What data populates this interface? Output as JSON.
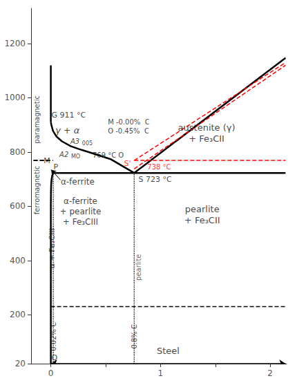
{
  "chart_data": {
    "type": "line",
    "xlim": [
      -0.18,
      2.15
    ],
    "xticks": [
      0,
      {
        "value": 0.5,
        "label": null
      },
      1,
      {
        "value": 1.5,
        "label": null
      },
      2
    ],
    "ylim": [
      20,
      1330
    ],
    "yticks": [
      20,
      200,
      400,
      600,
      800,
      1000,
      1200
    ],
    "grid": false,
    "series": [
      {
        "type": "line",
        "line_style": "solid",
        "color": "#000000",
        "x": [
          0.0,
          0.0,
          0.001,
          0.003,
          0.007,
          0.013,
          0.018,
          0.022
        ],
        "y": [
          20,
          600,
          650,
          680,
          700,
          714,
          720,
          723
        ]
      },
      {
        "type": "line",
        "line_style": "solid",
        "color": "#000000",
        "x": [
          0.0,
          0.005,
          0.02,
          0.05,
          0.1,
          0.18,
          0.28,
          0.4,
          0.55,
          0.76
        ],
        "y": [
          911,
          900,
          878,
          858,
          840,
          822,
          808,
          793,
          773,
          723
        ]
      },
      {
        "type": "line",
        "line_style": "solid",
        "color": "#000000",
        "x": [
          0.0,
          0.0
        ],
        "y": [
          911,
          1120
        ]
      },
      {
        "type": "line",
        "line_style": "solid",
        "color": "#000000",
        "x": [
          0.76,
          2.14
        ],
        "y": [
          723,
          1147
        ]
      },
      {
        "type": "line",
        "line_style": "solid",
        "color": "#000000",
        "x": [
          0.022,
          0.76
        ],
        "y": [
          723,
          723
        ]
      },
      {
        "type": "line",
        "line_style": "solid",
        "color": "#000000",
        "x": [
          0.76,
          2.14
        ],
        "y": [
          723,
          723
        ]
      },
      {
        "type": "line",
        "line_style": "dashed",
        "color": "#000000",
        "x": [
          -0.155,
          0.022
        ],
        "y": [
          769,
          769
        ]
      },
      {
        "type": "line",
        "line_style": "dashed",
        "color": "#ff0000",
        "x": [
          0.76,
          2.14
        ],
        "y": [
          769,
          769
        ]
      },
      {
        "type": "line",
        "line_style": "dashed",
        "color": "#ff0000",
        "x": [
          0.76,
          2.14
        ],
        "y": [
          738,
          1120
        ]
      },
      {
        "type": "line",
        "line_style": "dashed",
        "color": "#ff0000",
        "x": [
          0.76,
          2.14
        ],
        "y": [
          769,
          1130
        ]
      },
      {
        "type": "line",
        "line_style": "dotted",
        "color": "#000000",
        "x": [
          0.022,
          0.022
        ],
        "y": [
          20,
          723
        ]
      },
      {
        "type": "line",
        "line_style": "dotted",
        "color": "#000000",
        "x": [
          0.76,
          0.76
        ],
        "y": [
          20,
          723
        ]
      },
      {
        "type": "line",
        "line_style": "dashed",
        "color": "#000000",
        "x": [
          0.0,
          2.14
        ],
        "y": [
          230,
          230
        ]
      },
      {
        "type": "line",
        "line_style": "dashed",
        "color": "#000000",
        "x": [
          -0.16,
          -0.02
        ],
        "y": [
          769,
          769
        ]
      },
      {
        "type": "arrow",
        "color": "#000000",
        "x": [
          0.0,
          2.14
        ],
        "y": [
          20,
          20
        ]
      }
    ],
    "annotations": [
      {
        "text": "G 911 °C"
      },
      {
        "text": "P"
      },
      {
        "text": "S 723 °C"
      },
      {
        "text": "Q"
      },
      {
        "text": "M"
      },
      {
        "text": "769 °C O"
      },
      {
        "text": "S'",
        "color": "#ff0000"
      },
      {
        "text": "738 °C",
        "color": "#ff0000"
      },
      {
        "text": "M -0.00%  C\nO -0.45%  C"
      },
      {
        "text": "A3"
      },
      {
        "text": "005"
      },
      {
        "text": "A2"
      },
      {
        "text": "MO"
      },
      {
        "text": "γ + α"
      },
      {
        "text": "α-ferrite"
      },
      {
        "text": "austenite (γ)\n+ Fe₃CII"
      },
      {
        "text": "α-ferrite\n+ pearlite\n+ Fe₃CIII"
      },
      {
        "text": "pearlite\n+ Fe₃CII"
      },
      {
        "text": "α + Fe₃CIII"
      },
      {
        "text": "pearlite",
        "color": "#444444"
      },
      {
        "text": "0.02% C"
      },
      {
        "text": "0.8% C"
      },
      {
        "text": "paramagnetic"
      },
      {
        "text": "ferromagnetic"
      },
      {
        "text": "Steel"
      }
    ]
  }
}
